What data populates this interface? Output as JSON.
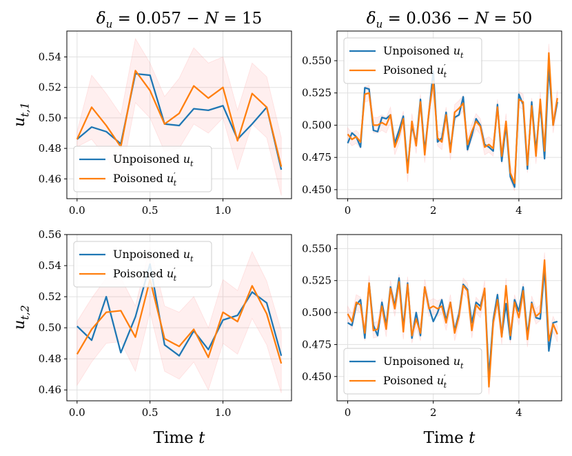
{
  "figure": {
    "xlabel": "Time t",
    "ylabel_top": "u_{t,1}",
    "ylabel_bottom": "u_{t,2}",
    "colors": {
      "unpoisoned": "#1f77b4",
      "poisoned": "#ff7f0e",
      "band": "#ff9999",
      "grid": "#e0e0e0"
    }
  },
  "chart_data": [
    {
      "type": "line",
      "panel": "top-left",
      "title": "δ_u = 0.057 − N = 15",
      "xlim": [
        -0.07,
        1.47
      ],
      "ylim": [
        0.447,
        0.557
      ],
      "xticks": [
        0.0,
        0.5,
        1.0
      ],
      "xtick_labels": [
        "0.0",
        "0.5",
        "1.0"
      ],
      "yticks": [
        0.46,
        0.48,
        0.5,
        0.52,
        0.54
      ],
      "ytick_labels": [
        "0.46",
        "0.48",
        "0.50",
        "0.52",
        "0.54"
      ],
      "grid": true,
      "legend": {
        "position": "bottom-left",
        "entries": [
          "Unpoisoned u_t",
          "Poisoned u′_t"
        ]
      },
      "x": [
        0.0,
        0.1,
        0.2,
        0.3,
        0.4,
        0.5,
        0.6,
        0.7,
        0.8,
        0.9,
        1.0,
        1.1,
        1.2,
        1.3,
        1.4
      ],
      "series": [
        {
          "name": "Unpoisoned u_t",
          "color": "#1f77b4",
          "values": [
            0.486,
            0.494,
            0.491,
            0.483,
            0.529,
            0.528,
            0.496,
            0.495,
            0.506,
            0.505,
            0.508,
            0.486,
            0.496,
            0.507,
            0.466
          ]
        },
        {
          "name": "Poisoned u′_t",
          "color": "#ff7f0e",
          "values": [
            0.486,
            0.507,
            0.495,
            0.481,
            0.531,
            0.518,
            0.496,
            0.503,
            0.521,
            0.513,
            0.52,
            0.485,
            0.516,
            0.507,
            0.468
          ]
        }
      ],
      "band": {
        "lower": [
          0.481,
          0.486,
          0.474,
          0.46,
          0.51,
          0.5,
          0.478,
          0.48,
          0.496,
          0.49,
          0.5,
          0.466,
          0.496,
          0.487,
          0.449
        ],
        "upper": [
          0.491,
          0.528,
          0.516,
          0.502,
          0.552,
          0.536,
          0.514,
          0.526,
          0.546,
          0.536,
          0.54,
          0.505,
          0.536,
          0.527,
          0.487
        ]
      }
    },
    {
      "type": "line",
      "panel": "top-right",
      "title": "δ_u = 0.036 − N = 50",
      "xlim": [
        -0.25,
        5.0
      ],
      "ylim": [
        0.443,
        0.573
      ],
      "xticks": [
        0,
        2,
        4
      ],
      "xtick_labels": [
        "0",
        "2",
        "4"
      ],
      "yticks": [
        0.45,
        0.475,
        0.5,
        0.525,
        0.55
      ],
      "ytick_labels": [
        "0.450",
        "0.475",
        "0.500",
        "0.525",
        "0.550"
      ],
      "grid": true,
      "legend": {
        "position": "top-left",
        "entries": [
          "Unpoisoned u_t",
          "Poisoned u′_t"
        ]
      },
      "x": [
        0.0,
        0.1,
        0.2,
        0.3,
        0.4,
        0.5,
        0.6,
        0.7,
        0.8,
        0.9,
        1.0,
        1.1,
        1.2,
        1.3,
        1.4,
        1.5,
        1.6,
        1.7,
        1.8,
        1.9,
        2.0,
        2.1,
        2.2,
        2.3,
        2.4,
        2.5,
        2.6,
        2.7,
        2.8,
        2.9,
        3.0,
        3.1,
        3.2,
        3.3,
        3.4,
        3.5,
        3.6,
        3.7,
        3.8,
        3.9,
        4.0,
        4.1,
        4.2,
        4.3,
        4.4,
        4.5,
        4.6,
        4.7,
        4.8,
        4.9
      ],
      "series": [
        {
          "name": "Unpoisoned u_t",
          "color": "#1f77b4",
          "values": [
            0.486,
            0.494,
            0.491,
            0.483,
            0.529,
            0.528,
            0.496,
            0.495,
            0.506,
            0.505,
            0.508,
            0.486,
            0.496,
            0.507,
            0.466,
            0.5,
            0.486,
            0.52,
            0.48,
            0.51,
            0.542,
            0.487,
            0.49,
            0.51,
            0.481,
            0.506,
            0.508,
            0.522,
            0.481,
            0.492,
            0.505,
            0.5,
            0.485,
            0.483,
            0.48,
            0.516,
            0.472,
            0.5,
            0.46,
            0.452,
            0.524,
            0.516,
            0.466,
            0.518,
            0.48,
            0.517,
            0.474,
            0.545,
            0.5,
            0.518
          ]
        },
        {
          "name": "Poisoned u′_t",
          "color": "#ff7f0e",
          "values": [
            0.493,
            0.489,
            0.491,
            0.487,
            0.524,
            0.525,
            0.5,
            0.5,
            0.502,
            0.5,
            0.508,
            0.483,
            0.492,
            0.505,
            0.463,
            0.503,
            0.484,
            0.518,
            0.477,
            0.511,
            0.534,
            0.49,
            0.487,
            0.508,
            0.479,
            0.51,
            0.513,
            0.517,
            0.485,
            0.495,
            0.503,
            0.499,
            0.483,
            0.485,
            0.482,
            0.514,
            0.476,
            0.503,
            0.463,
            0.455,
            0.52,
            0.518,
            0.469,
            0.515,
            0.476,
            0.52,
            0.48,
            0.556,
            0.5,
            0.521
          ]
        }
      ],
      "band": {
        "lower": [
          0.488,
          0.484,
          0.486,
          0.482,
          0.518,
          0.519,
          0.494,
          0.494,
          0.496,
          0.494,
          0.502,
          0.477,
          0.486,
          0.499,
          0.456,
          0.497,
          0.478,
          0.512,
          0.471,
          0.505,
          0.527,
          0.484,
          0.481,
          0.502,
          0.473,
          0.504,
          0.507,
          0.511,
          0.479,
          0.489,
          0.497,
          0.493,
          0.477,
          0.479,
          0.476,
          0.508,
          0.47,
          0.497,
          0.457,
          0.449,
          0.514,
          0.512,
          0.463,
          0.509,
          0.47,
          0.514,
          0.474,
          0.549,
          0.494,
          0.515
        ],
        "upper": [
          0.498,
          0.494,
          0.496,
          0.492,
          0.53,
          0.531,
          0.506,
          0.506,
          0.508,
          0.506,
          0.514,
          0.489,
          0.498,
          0.511,
          0.47,
          0.509,
          0.49,
          0.524,
          0.483,
          0.517,
          0.541,
          0.496,
          0.493,
          0.514,
          0.485,
          0.516,
          0.519,
          0.523,
          0.491,
          0.501,
          0.509,
          0.505,
          0.489,
          0.491,
          0.488,
          0.52,
          0.482,
          0.509,
          0.469,
          0.461,
          0.526,
          0.524,
          0.475,
          0.521,
          0.482,
          0.526,
          0.486,
          0.563,
          0.506,
          0.527
        ]
      }
    },
    {
      "type": "line",
      "panel": "bottom-left",
      "title": "",
      "xlim": [
        -0.07,
        1.47
      ],
      "ylim": [
        0.453,
        0.56
      ],
      "xticks": [
        0.0,
        0.5,
        1.0
      ],
      "xtick_labels": [
        "0.0",
        "0.5",
        "1.0"
      ],
      "yticks": [
        0.46,
        0.48,
        0.5,
        0.52,
        0.54,
        0.56
      ],
      "ytick_labels": [
        "0.46",
        "0.48",
        "0.50",
        "0.52",
        "0.54",
        "0.56"
      ],
      "grid": true,
      "legend": {
        "position": "top-left",
        "entries": [
          "Unpoisoned u_t",
          "Poisoned u′_t"
        ]
      },
      "x": [
        0.0,
        0.1,
        0.2,
        0.3,
        0.4,
        0.5,
        0.6,
        0.7,
        0.8,
        0.9,
        1.0,
        1.1,
        1.2,
        1.3,
        1.4
      ],
      "series": [
        {
          "name": "Unpoisoned u_t",
          "color": "#1f77b4",
          "values": [
            0.501,
            0.492,
            0.52,
            0.484,
            0.507,
            0.541,
            0.489,
            0.482,
            0.498,
            0.486,
            0.505,
            0.508,
            0.523,
            0.516,
            0.482
          ]
        },
        {
          "name": "Poisoned u′_t",
          "color": "#ff7f0e",
          "values": [
            0.483,
            0.499,
            0.51,
            0.511,
            0.494,
            0.531,
            0.493,
            0.488,
            0.499,
            0.481,
            0.51,
            0.504,
            0.527,
            0.509,
            0.477
          ]
        }
      ],
      "band": {
        "lower": [
          0.463,
          0.478,
          0.49,
          0.491,
          0.472,
          0.51,
          0.472,
          0.467,
          0.478,
          0.46,
          0.49,
          0.483,
          0.506,
          0.489,
          0.458
        ],
        "upper": [
          0.504,
          0.519,
          0.532,
          0.532,
          0.514,
          0.552,
          0.514,
          0.51,
          0.52,
          0.5,
          0.531,
          0.524,
          0.549,
          0.53,
          0.498
        ]
      }
    },
    {
      "type": "line",
      "panel": "bottom-right",
      "title": "",
      "xlim": [
        -0.25,
        5.0
      ],
      "ylim": [
        0.431,
        0.561
      ],
      "xticks": [
        0,
        2,
        4
      ],
      "xtick_labels": [
        "0",
        "2",
        "4"
      ],
      "yticks": [
        0.45,
        0.475,
        0.5,
        0.525,
        0.55
      ],
      "ytick_labels": [
        "0.450",
        "0.475",
        "0.500",
        "0.525",
        "0.550"
      ],
      "grid": true,
      "legend": {
        "position": "bottom-left",
        "entries": [
          "Unpoisoned u_t",
          "Poisoned u′_t"
        ]
      },
      "x": [
        0.0,
        0.1,
        0.2,
        0.3,
        0.4,
        0.5,
        0.6,
        0.7,
        0.8,
        0.9,
        1.0,
        1.1,
        1.2,
        1.3,
        1.4,
        1.5,
        1.6,
        1.7,
        1.8,
        1.9,
        2.0,
        2.1,
        2.2,
        2.3,
        2.4,
        2.5,
        2.6,
        2.7,
        2.8,
        2.9,
        3.0,
        3.1,
        3.2,
        3.3,
        3.4,
        3.5,
        3.6,
        3.7,
        3.8,
        3.9,
        4.0,
        4.1,
        4.2,
        4.3,
        4.4,
        4.5,
        4.6,
        4.7,
        4.8,
        4.9
      ],
      "series": [
        {
          "name": "Unpoisoned u_t",
          "color": "#1f77b4",
          "values": [
            0.492,
            0.49,
            0.506,
            0.51,
            0.48,
            0.523,
            0.49,
            0.482,
            0.508,
            0.49,
            0.52,
            0.505,
            0.527,
            0.488,
            0.523,
            0.48,
            0.5,
            0.482,
            0.52,
            0.504,
            0.493,
            0.5,
            0.51,
            0.494,
            0.508,
            0.486,
            0.499,
            0.522,
            0.518,
            0.492,
            0.508,
            0.505,
            0.518,
            0.45,
            0.494,
            0.514,
            0.482,
            0.507,
            0.479,
            0.51,
            0.501,
            0.52,
            0.482,
            0.508,
            0.496,
            0.495,
            0.535,
            0.47,
            0.492,
            0.493
          ]
        },
        {
          "name": "Poisoned u′_t",
          "color": "#ff7f0e",
          "values": [
            0.499,
            0.493,
            0.508,
            0.506,
            0.484,
            0.523,
            0.486,
            0.487,
            0.505,
            0.487,
            0.519,
            0.503,
            0.524,
            0.485,
            0.522,
            0.482,
            0.495,
            0.484,
            0.52,
            0.503,
            0.505,
            0.503,
            0.505,
            0.492,
            0.508,
            0.484,
            0.497,
            0.521,
            0.517,
            0.486,
            0.506,
            0.502,
            0.519,
            0.442,
            0.492,
            0.51,
            0.481,
            0.521,
            0.482,
            0.508,
            0.496,
            0.517,
            0.479,
            0.507,
            0.497,
            0.5,
            0.541,
            0.478,
            0.491,
            0.483
          ]
        }
      ],
      "band": {
        "lower": [
          0.493,
          0.487,
          0.502,
          0.5,
          0.478,
          0.517,
          0.48,
          0.481,
          0.499,
          0.481,
          0.513,
          0.497,
          0.518,
          0.479,
          0.516,
          0.476,
          0.489,
          0.478,
          0.514,
          0.497,
          0.499,
          0.497,
          0.499,
          0.486,
          0.502,
          0.478,
          0.491,
          0.515,
          0.511,
          0.48,
          0.5,
          0.496,
          0.513,
          0.436,
          0.486,
          0.504,
          0.475,
          0.515,
          0.476,
          0.502,
          0.49,
          0.511,
          0.473,
          0.501,
          0.491,
          0.494,
          0.535,
          0.472,
          0.485,
          0.477
        ],
        "upper": [
          0.505,
          0.499,
          0.514,
          0.512,
          0.49,
          0.529,
          0.492,
          0.493,
          0.511,
          0.493,
          0.525,
          0.509,
          0.53,
          0.491,
          0.528,
          0.488,
          0.501,
          0.49,
          0.526,
          0.509,
          0.511,
          0.509,
          0.511,
          0.498,
          0.514,
          0.49,
          0.503,
          0.527,
          0.523,
          0.492,
          0.512,
          0.508,
          0.525,
          0.448,
          0.498,
          0.516,
          0.487,
          0.527,
          0.488,
          0.514,
          0.502,
          0.523,
          0.485,
          0.513,
          0.503,
          0.506,
          0.547,
          0.484,
          0.497,
          0.489
        ]
      }
    }
  ]
}
